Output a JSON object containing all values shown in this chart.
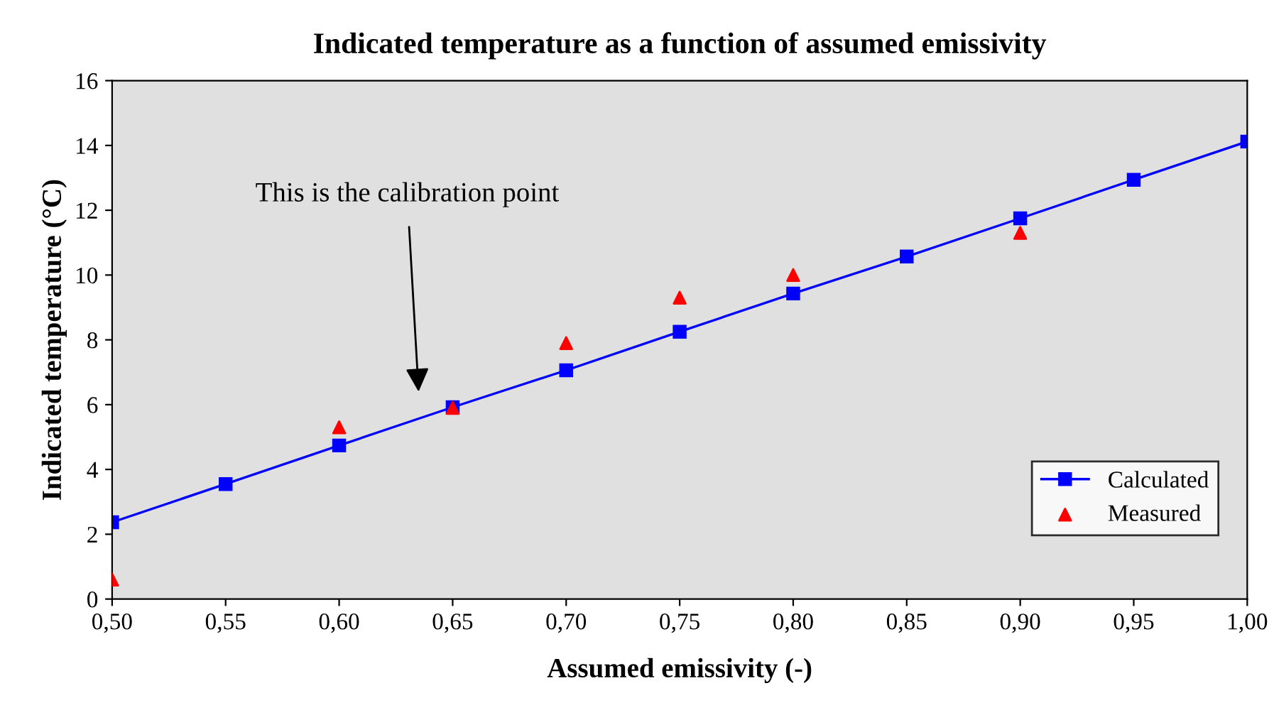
{
  "chart_data": {
    "type": "line",
    "title": "Indicated temperature as a function of assumed emissivity",
    "xlabel": "Assumed emissivity (-)",
    "ylabel": "Indicated temperature (°C)",
    "series": [
      {
        "name": "Calculated",
        "color": "#0000ff",
        "marker": "square",
        "line_style": "solid",
        "x": [
          0.5,
          0.55,
          0.6,
          0.65,
          0.7,
          0.75,
          0.8,
          0.85,
          0.9,
          0.95,
          1.0
        ],
        "values": [
          2.37,
          3.55,
          4.74,
          5.92,
          7.06,
          8.25,
          9.43,
          10.57,
          11.75,
          12.94,
          14.12
        ]
      },
      {
        "name": "Measured",
        "type": "scatter",
        "color": "#ff0000",
        "marker": "triangle",
        "x": [
          0.5,
          0.6,
          0.65,
          0.7,
          0.75,
          0.8,
          0.9
        ],
        "values": [
          0.6,
          5.3,
          5.9,
          7.9,
          9.3,
          10.0,
          11.3
        ]
      }
    ],
    "annotations": [
      "This is the calibration point"
    ],
    "xlim": [
      0.5,
      1.0
    ],
    "xticks": [
      {
        "value": 0.5,
        "label": "0,50"
      },
      {
        "value": 0.55,
        "label": "0,55"
      },
      {
        "value": 0.6,
        "label": "0,60"
      },
      {
        "value": 0.65,
        "label": "0,65"
      },
      {
        "value": 0.7,
        "label": "0,70"
      },
      {
        "value": 0.75,
        "label": "0,75"
      },
      {
        "value": 0.8,
        "label": "0,80"
      },
      {
        "value": 0.85,
        "label": "0,85"
      },
      {
        "value": 0.9,
        "label": "0,90"
      },
      {
        "value": 0.95,
        "label": "0,95"
      },
      {
        "value": 1.0,
        "label": "1,00"
      }
    ],
    "ylim": [
      0,
      16
    ],
    "yticks": [
      0,
      2,
      4,
      6,
      8,
      10,
      12,
      14,
      16
    ],
    "grid": false,
    "legend": "bottom right"
  }
}
